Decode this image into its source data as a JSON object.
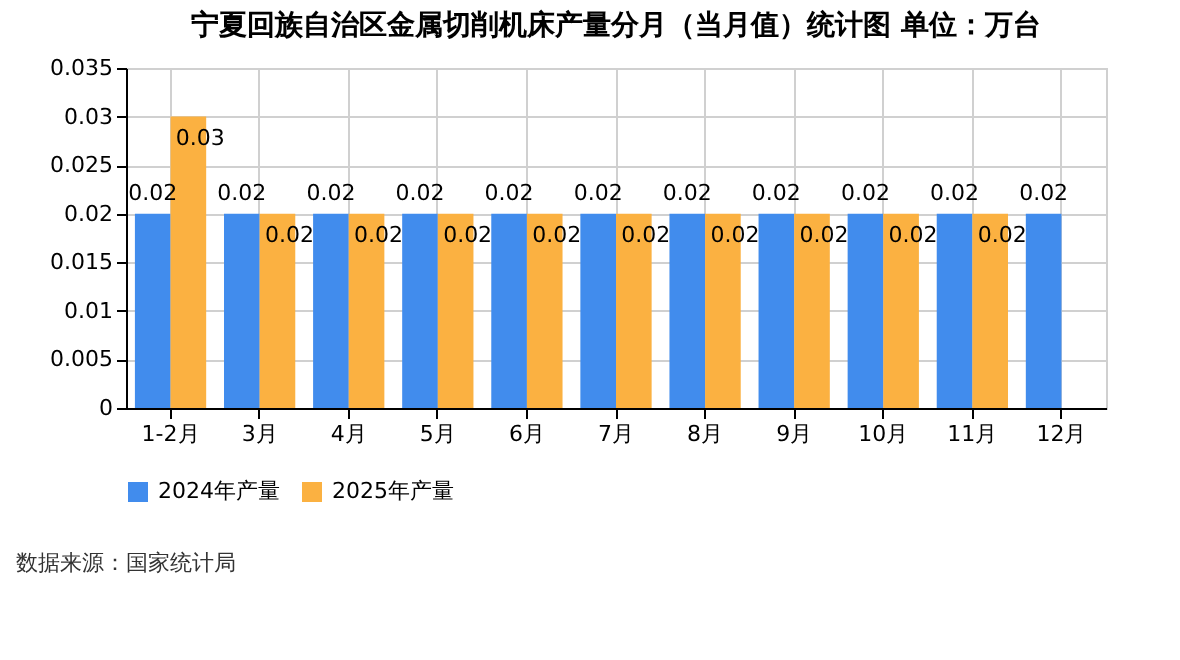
{
  "chart_data": {
    "type": "bar",
    "title": "宁夏回族自治区金属切削机床产量分月（当月值）统计图 单位：万台",
    "categories": [
      "1-2月",
      "3月",
      "4月",
      "5月",
      "6月",
      "7月",
      "8月",
      "9月",
      "10月",
      "11月",
      "12月"
    ],
    "series": [
      {
        "name": "2024年产量",
        "color": "#418ced",
        "values": [
          0.02,
          0.02,
          0.02,
          0.02,
          0.02,
          0.02,
          0.02,
          0.02,
          0.02,
          0.02,
          0.02
        ]
      },
      {
        "name": "2025年产量",
        "color": "#fbb141",
        "values": [
          0.03,
          0.02,
          0.02,
          0.02,
          0.02,
          0.02,
          0.02,
          0.02,
          0.02,
          0.02,
          null
        ]
      }
    ],
    "ylim": [
      0,
      0.035
    ],
    "yticks": [
      0,
      0.005,
      0.01,
      0.015,
      0.02,
      0.025,
      0.03,
      0.035
    ],
    "grid": true,
    "legend": "bottom",
    "data_labels": true,
    "annotations": [
      "数据来源：国家统计局"
    ]
  }
}
